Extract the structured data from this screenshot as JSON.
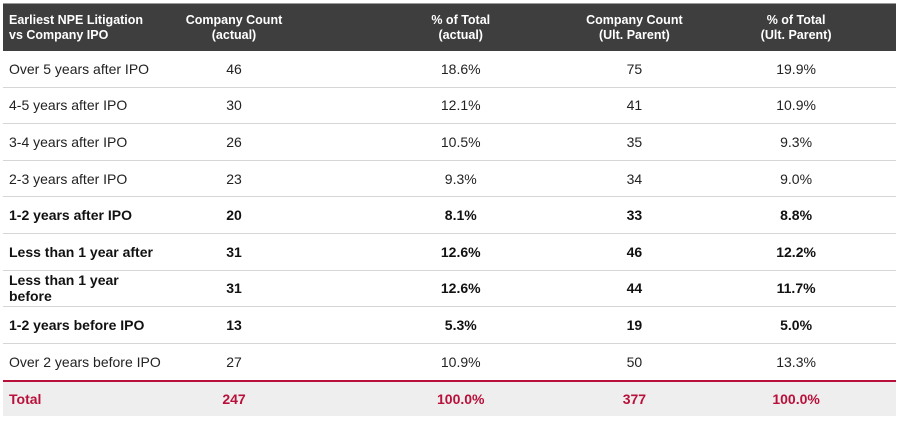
{
  "header": {
    "col0": [
      "Earliest NPE Litigation",
      "vs Company IPO"
    ],
    "col1": [
      "Company Count",
      "(actual)"
    ],
    "col2": [
      "% of Total",
      "(actual)"
    ],
    "col3": [
      "Company Count",
      "(Ult. Parent)"
    ],
    "col4": [
      "% of Total",
      "(Ult. Parent)"
    ]
  },
  "rows": [
    {
      "label": "Over 5 years after IPO",
      "count_actual": "46",
      "pct_actual": "18.6%",
      "count_parent": "75",
      "pct_parent": "19.9%",
      "bold": false
    },
    {
      "label": "4-5 years after IPO",
      "count_actual": "30",
      "pct_actual": "12.1%",
      "count_parent": "41",
      "pct_parent": "10.9%",
      "bold": false
    },
    {
      "label": "3-4 years after IPO",
      "count_actual": "26",
      "pct_actual": "10.5%",
      "count_parent": "35",
      "pct_parent": "9.3%",
      "bold": false
    },
    {
      "label": "2-3 years after IPO",
      "count_actual": "23",
      "pct_actual": "9.3%",
      "count_parent": "34",
      "pct_parent": "9.0%",
      "bold": false
    },
    {
      "label": "1-2 years after IPO",
      "count_actual": "20",
      "pct_actual": "8.1%",
      "count_parent": "33",
      "pct_parent": "8.8%",
      "bold": true
    },
    {
      "label": "Less than 1 year after",
      "count_actual": "31",
      "pct_actual": "12.6%",
      "count_parent": "46",
      "pct_parent": "12.2%",
      "bold": true
    },
    {
      "label": "Less than 1 year before",
      "count_actual": "31",
      "pct_actual": "12.6%",
      "count_parent": "44",
      "pct_parent": "11.7%",
      "bold": true
    },
    {
      "label": "1-2 years before IPO",
      "count_actual": "13",
      "pct_actual": "5.3%",
      "count_parent": "19",
      "pct_parent": "5.0%",
      "bold": true
    },
    {
      "label": "Over 2 years before IPO",
      "count_actual": "27",
      "pct_actual": "10.9%",
      "count_parent": "50",
      "pct_parent": "13.3%",
      "bold": false
    }
  ],
  "total": {
    "label": "Total",
    "count_actual": "247",
    "pct_actual": "100.0%",
    "count_parent": "377",
    "pct_parent": "100.0%"
  },
  "colors": {
    "header_bg": "#3e3e3e",
    "accent": "#b8103a",
    "total_bg": "#eeeeee"
  }
}
